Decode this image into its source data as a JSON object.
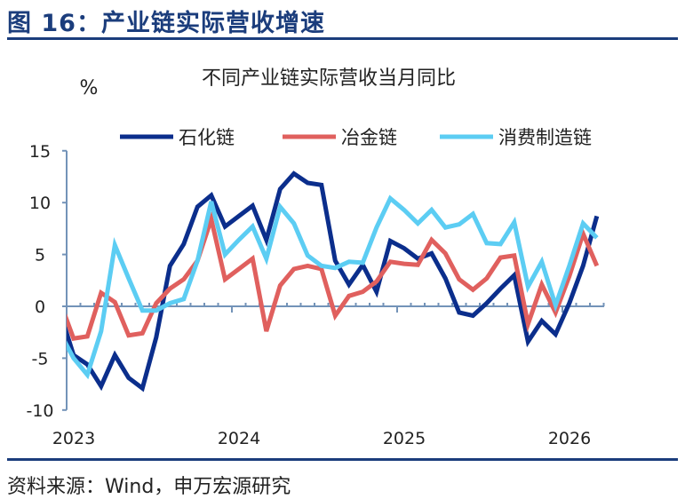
{
  "figure_title": "图 16：产业链实际营收增速",
  "source": "资料来源：Wind，申万宏源研究",
  "chart_data": {
    "type": "line",
    "title": "不同产业链实际营收当月同比",
    "ylabel": "%",
    "xlabel": "",
    "ylim": [
      -10,
      15
    ],
    "yticks": [
      15,
      10,
      5,
      0,
      -5,
      -10
    ],
    "ytick_labels": [
      "15",
      "10",
      "5",
      "0",
      "-5",
      "-10"
    ],
    "x_unit": "months since Jan 2023 (point k at k-0.5)",
    "xlim": [
      0,
      39
    ],
    "xtick_labels": [
      {
        "label": "2023",
        "month": 0
      },
      {
        "label": "2024",
        "month": 12
      },
      {
        "label": "2025",
        "month": 24
      },
      {
        "label": "2026",
        "month": 36
      }
    ],
    "grid": false,
    "legend": "top",
    "series": [
      {
        "name": "石化链",
        "color": "#0b2e8c",
        "values": [
          -0.5,
          -4.7,
          -5.6,
          -7.7,
          -4.7,
          -6.9,
          -7.9,
          -3.0,
          3.9,
          6.0,
          9.6,
          10.7,
          7.7,
          8.7,
          9.7,
          6.4,
          11.3,
          12.8,
          11.9,
          11.7,
          4.4,
          2.1,
          4.0,
          1.4,
          6.3,
          5.6,
          4.6,
          5.1,
          2.7,
          -0.6,
          -0.9,
          0.3,
          1.7,
          3.0,
          -3.4,
          -1.4,
          -2.7,
          0.3,
          3.9,
          8.7
        ]
      },
      {
        "name": "冶金链",
        "color": "#e0605e",
        "values": [
          0.5,
          -3.1,
          -2.9,
          1.3,
          0.4,
          -2.8,
          -2.6,
          0.3,
          1.7,
          2.6,
          4.4,
          8.4,
          2.6,
          3.6,
          4.6,
          -2.4,
          2.0,
          3.6,
          3.9,
          3.6,
          -0.9,
          1.0,
          1.4,
          2.4,
          4.3,
          4.1,
          4.0,
          6.4,
          5.1,
          2.6,
          1.6,
          2.7,
          4.7,
          4.9,
          -1.7,
          2.1,
          -0.6,
          2.9,
          7.0,
          3.9
        ]
      },
      {
        "name": "消费制造链",
        "color": "#5ccdf3",
        "values": [
          -2.5,
          -5.0,
          -6.6,
          -2.4,
          5.9,
          2.7,
          -0.4,
          -0.4,
          0.3,
          0.7,
          4.4,
          10.1,
          5.0,
          6.4,
          7.7,
          4.6,
          9.6,
          8.0,
          4.9,
          3.9,
          3.7,
          4.3,
          4.2,
          7.6,
          10.4,
          9.3,
          8.0,
          9.3,
          7.6,
          7.9,
          8.9,
          6.1,
          6.0,
          8.1,
          1.9,
          4.3,
          0.1,
          3.9,
          8.0,
          6.6
        ]
      }
    ]
  }
}
